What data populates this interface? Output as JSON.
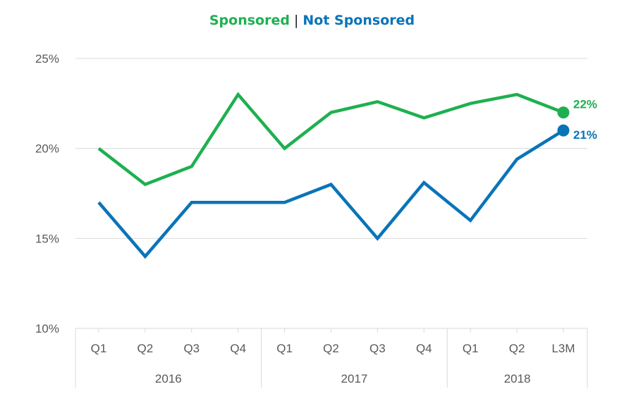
{
  "legend": {
    "separator": "|"
  },
  "colors": {
    "sponsored": "#1EB050",
    "not_sponsored": "#0A74B8",
    "grid": "#D9D9D9",
    "axis_text": "#595959"
  },
  "chart_data": {
    "type": "line",
    "categories": [
      "Q1",
      "Q2",
      "Q3",
      "Q4",
      "Q1",
      "Q2",
      "Q3",
      "Q4",
      "Q1",
      "Q2",
      "L3M"
    ],
    "groups": [
      {
        "label": "2016",
        "count": 4
      },
      {
        "label": "2017",
        "count": 4
      },
      {
        "label": "2018",
        "count": 3
      }
    ],
    "series": [
      {
        "name": "Sponsored",
        "key": "sponsored",
        "values": [
          20,
          18,
          19,
          23,
          20,
          22,
          22.6,
          21.7,
          22.5,
          23,
          22
        ],
        "end_label": "22%"
      },
      {
        "name": "Not Sponsored",
        "key": "not_sponsored",
        "values": [
          17,
          14,
          17,
          17,
          17,
          18,
          15,
          18.1,
          16,
          19.4,
          21
        ],
        "end_label": "21%"
      }
    ],
    "yticks": [
      "10%",
      "15%",
      "20%",
      "25%"
    ],
    "ytick_values": [
      10,
      15,
      20,
      25
    ],
    "ylim": [
      10,
      25
    ],
    "grid": true,
    "legend_position": "top-center"
  }
}
